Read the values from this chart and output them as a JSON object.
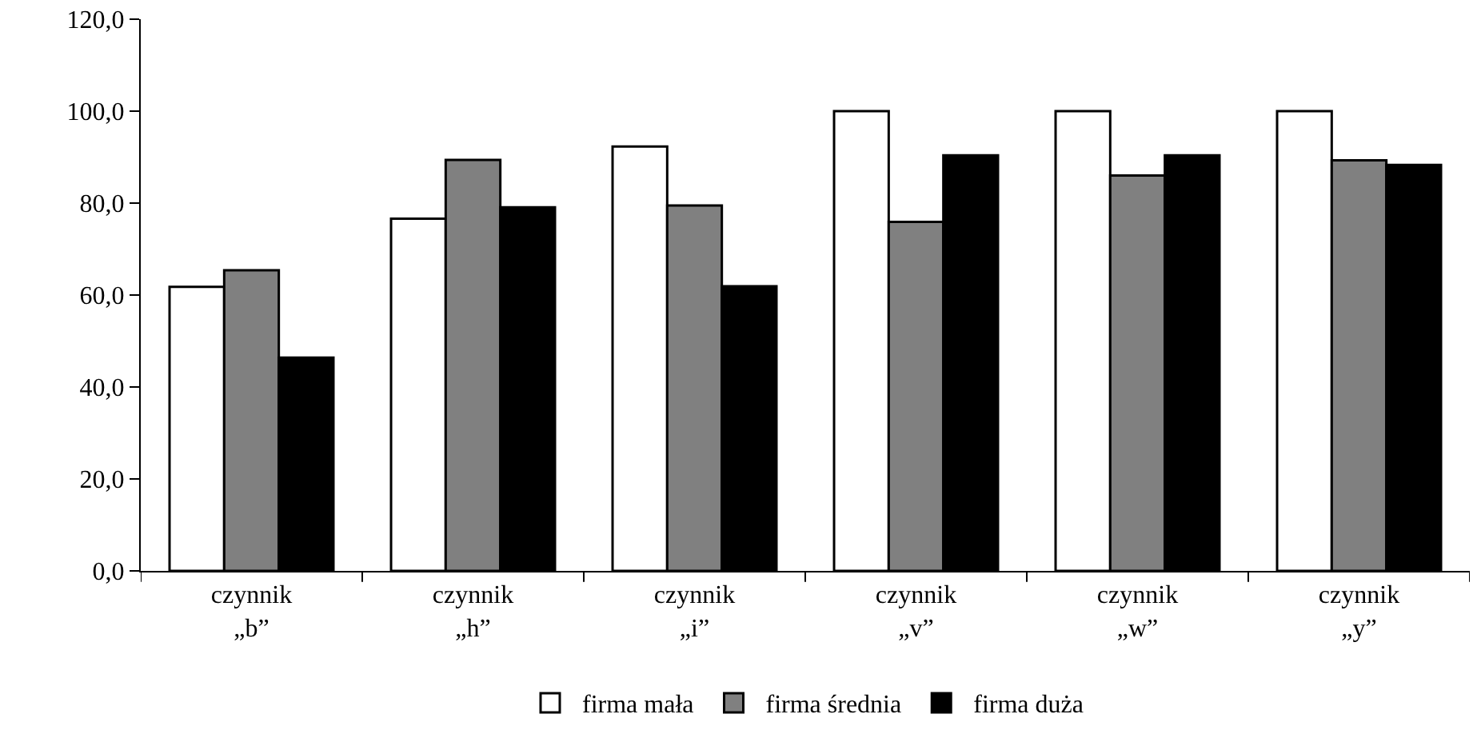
{
  "chart_data": {
    "type": "bar",
    "categories": [
      "czynnik\n„b”",
      "czynnik\n„h”",
      "czynnik\n„i”",
      "czynnik\n„v”",
      "czynnik\n„w”",
      "czynnik\n„y”"
    ],
    "series": [
      {
        "name": "firma mała",
        "color": "#ffffff",
        "values": [
          61.8,
          76.6,
          92.3,
          100.0,
          100.0,
          100.0
        ]
      },
      {
        "name": "firma średnia",
        "color": "#808080",
        "values": [
          65.4,
          89.4,
          79.5,
          75.9,
          86.0,
          89.3
        ]
      },
      {
        "name": "firma duża",
        "color": "#000000",
        "values": [
          46.4,
          79.1,
          61.9,
          90.4,
          90.4,
          88.3
        ]
      }
    ],
    "ylim": [
      0,
      120
    ],
    "yticks": [
      {
        "value": 0,
        "label": "0,0"
      },
      {
        "value": 20,
        "label": "20,0"
      },
      {
        "value": 40,
        "label": "40,0"
      },
      {
        "value": 60,
        "label": "60,0"
      },
      {
        "value": 80,
        "label": "80,0"
      },
      {
        "value": 100,
        "label": "100,0"
      },
      {
        "value": 120,
        "label": "120,0"
      }
    ],
    "grid": false,
    "legend": "bottom"
  }
}
